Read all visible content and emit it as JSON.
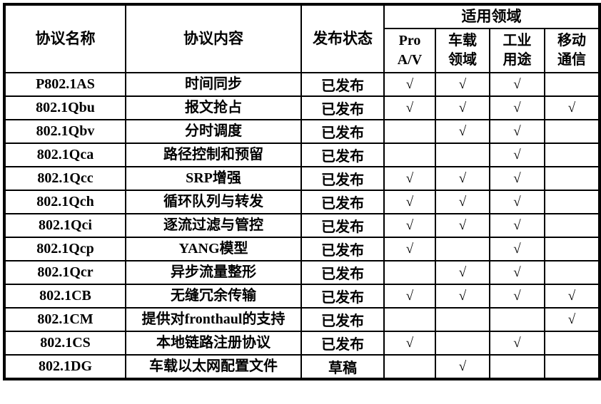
{
  "table": {
    "headers": {
      "protocol_name": "协议名称",
      "protocol_content": "协议内容",
      "release_status": "发布状态",
      "applicable_fields": "适用领域",
      "subheaders": [
        "Pro\nA/V",
        "车载\n领域",
        "工业\n用途",
        "移动\n通信"
      ]
    },
    "check_symbol": "√",
    "rows": [
      {
        "name": "P802.1AS",
        "content": "时间同步",
        "status": "已发布",
        "checks": [
          "√",
          "√",
          "√",
          ""
        ]
      },
      {
        "name": "802.1Qbu",
        "content": "报文抢占",
        "status": "已发布",
        "checks": [
          "√",
          "√",
          "√",
          "√"
        ]
      },
      {
        "name": "802.1Qbv",
        "content": "分时调度",
        "status": "已发布",
        "checks": [
          "",
          "√",
          "√",
          ""
        ]
      },
      {
        "name": "802.1Qca",
        "content": "路径控制和预留",
        "status": "已发布",
        "checks": [
          "",
          "",
          "√",
          ""
        ]
      },
      {
        "name": "802.1Qcc",
        "content": "SRP增强",
        "status": "已发布",
        "checks": [
          "√",
          "√",
          "√",
          ""
        ]
      },
      {
        "name": "802.1Qch",
        "content": "循环队列与转发",
        "status": "已发布",
        "checks": [
          "√",
          "√",
          "√",
          ""
        ]
      },
      {
        "name": "802.1Qci",
        "content": "逐流过滤与管控",
        "status": "已发布",
        "checks": [
          "√",
          "√",
          "√",
          ""
        ]
      },
      {
        "name": "802.1Qcp",
        "content": "YANG模型",
        "status": "已发布",
        "checks": [
          "√",
          "",
          "√",
          ""
        ]
      },
      {
        "name": "802.1Qcr",
        "content": "异步流量整形",
        "status": "已发布",
        "checks": [
          "",
          "√",
          "√",
          ""
        ]
      },
      {
        "name": "802.1CB",
        "content": "无缝冗余传输",
        "status": "已发布",
        "checks": [
          "√",
          "√",
          "√",
          "√"
        ]
      },
      {
        "name": "802.1CM",
        "content": "提供对fronthaul的支持",
        "status": "已发布",
        "checks": [
          "",
          "",
          "",
          "√"
        ]
      },
      {
        "name": "802.1CS",
        "content": "本地链路注册协议",
        "status": "已发布",
        "checks": [
          "√",
          "",
          "√",
          ""
        ]
      },
      {
        "name": "802.1DG",
        "content": "车载以太网配置文件",
        "status": "草稿",
        "checks": [
          "",
          "√",
          "",
          ""
        ]
      }
    ]
  },
  "colors": {
    "border": "#000000",
    "background": "#ffffff",
    "text": "#000000"
  }
}
